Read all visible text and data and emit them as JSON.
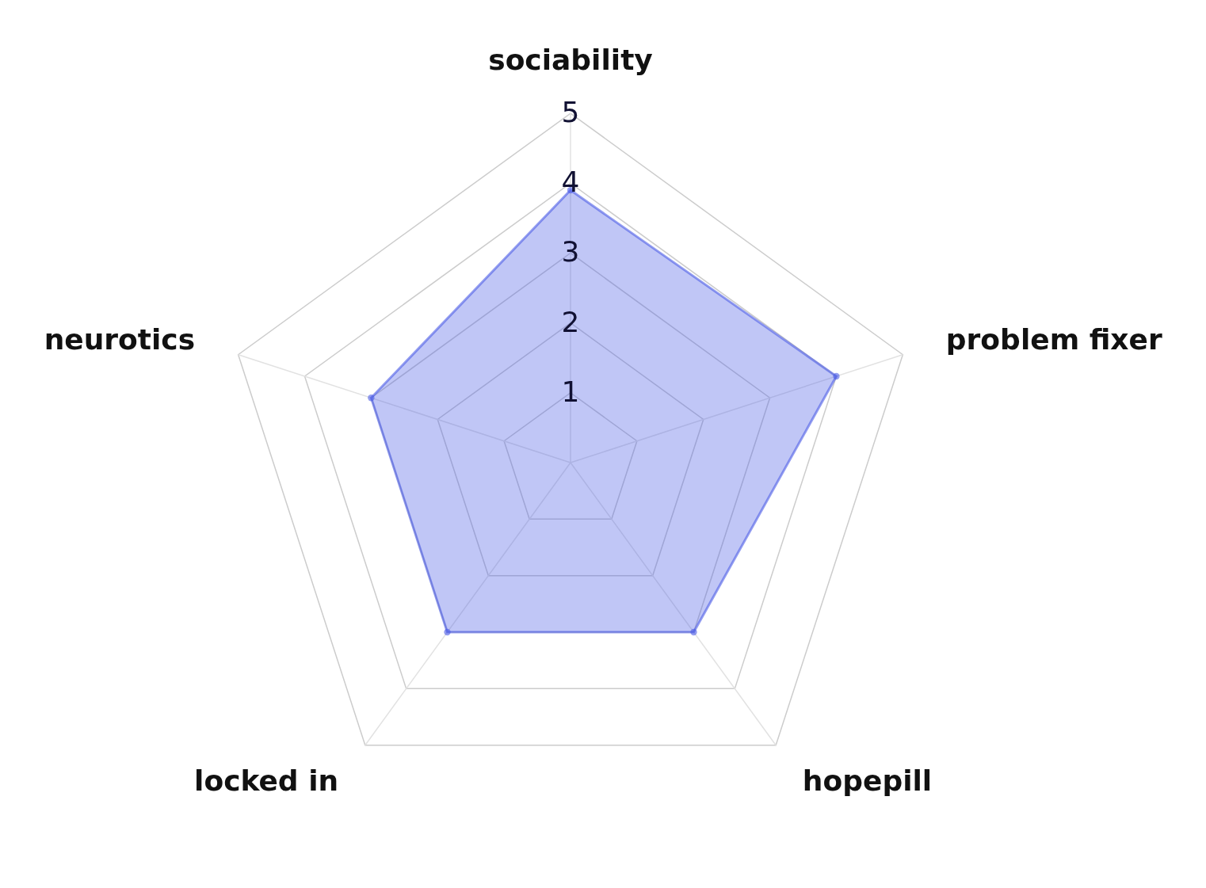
{
  "chart_data": {
    "type": "radar",
    "categories": [
      "sociability",
      "problem fixer",
      "hopepill",
      "locked in",
      "neurotics"
    ],
    "series": [
      {
        "color": "#4b5ce6",
        "values": [
          3.9,
          4,
          3,
          3,
          3
        ]
      }
    ],
    "ylim": [
      0,
      5
    ],
    "yticks": [
      1,
      2,
      3,
      4,
      5
    ],
    "grid": true,
    "marker": "circle"
  }
}
